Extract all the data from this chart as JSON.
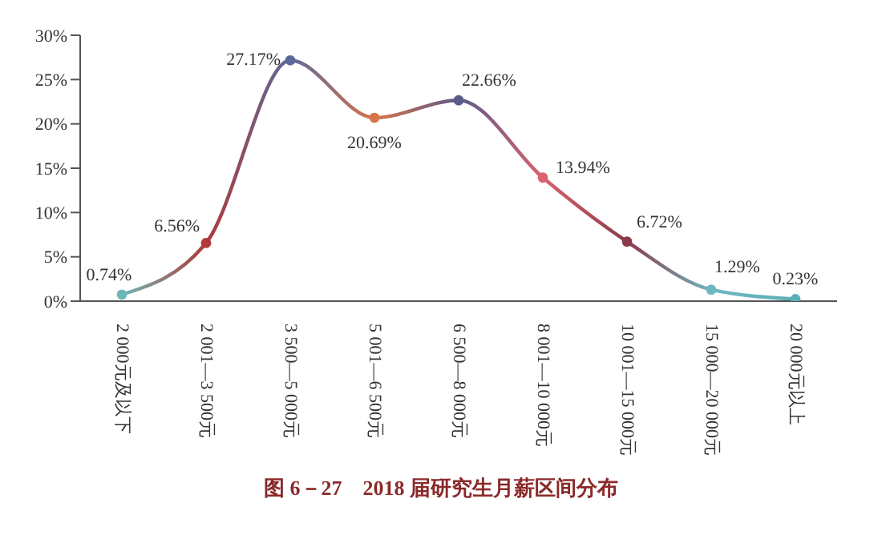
{
  "chart_data": {
    "type": "line",
    "title": "图 6－27　2018 届研究生月薪区间分布",
    "categories": [
      "2 000元及以下",
      "2 001—3 500元",
      "3 500—5 000元",
      "5 001—6 500元",
      "6 500—8 000元",
      "8 001—10 000元",
      "10 001—15 000元",
      "15 000—20 000元",
      "20 000元以上"
    ],
    "series": [
      {
        "colors": [
          "#6fb7b7",
          "#b03a3a",
          "#5b6a9c",
          "#d9734a",
          "#5a5a8a",
          "#d9636e",
          "#8a3a4a",
          "#6fb7c0",
          "#5ab0b8"
        ],
        "values": [
          0.74,
          6.56,
          27.17,
          20.69,
          22.66,
          13.94,
          6.72,
          1.29,
          0.23
        ],
        "value_labels": [
          "0.74%",
          "6.56%",
          "27.17%",
          "20.69%",
          "22.66%",
          "13.94%",
          "6.72%",
          "1.29%",
          "0.23%"
        ]
      }
    ],
    "ylim": [
      0,
      30
    ],
    "yticks": [
      {
        "value": 0,
        "label": "0%"
      },
      {
        "value": 5,
        "label": "5%"
      },
      {
        "value": 10,
        "label": "10%"
      },
      {
        "value": 15,
        "label": "15%"
      },
      {
        "value": 20,
        "label": "20%"
      },
      {
        "value": 25,
        "label": "25%"
      },
      {
        "value": 30,
        "label": "30%"
      }
    ],
    "marker": "circle",
    "grid": false
  }
}
